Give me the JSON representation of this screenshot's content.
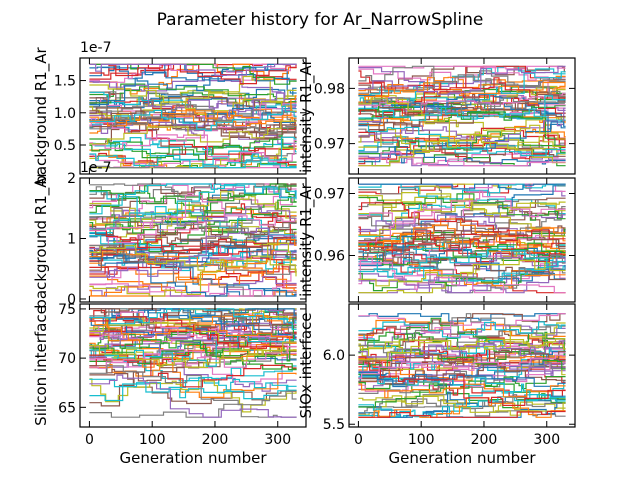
{
  "figure": {
    "title": "Parameter history for Ar_NarrowSpline"
  },
  "palette": [
    "#1f77b4",
    "#ff7f0e",
    "#2ca02c",
    "#d62728",
    "#9467bd",
    "#8c564b",
    "#e377c2",
    "#7f7f7f",
    "#bcbd22",
    "#17becf"
  ],
  "chart_data": [
    {
      "type": "line",
      "title": "",
      "xlabel": "",
      "ylabel": "background R1_Ar",
      "exponent_label": "1e-7",
      "xlim": [
        -15,
        345
      ],
      "ylim": [
        0.05,
        1.85
      ],
      "xticks": [
        0,
        100,
        200,
        300
      ],
      "xtick_labels": [
        "",
        "",
        "",
        ""
      ],
      "yticks": [
        0.5,
        1.0,
        1.5
      ],
      "ytick_labels": [
        "0.5",
        "1.0",
        "1.5"
      ],
      "position": "top-left",
      "n_generations": 330,
      "series_count": 60,
      "value_range": [
        0.15,
        1.75
      ],
      "value_center": 0.95
    },
    {
      "type": "line",
      "title": "",
      "xlabel": "",
      "ylabel": "intensity R1_Ar",
      "exponent_label": "",
      "xlim": [
        -15,
        345
      ],
      "ylim": [
        0.9645,
        0.9855
      ],
      "xticks": [
        0,
        100,
        200,
        300
      ],
      "xtick_labels": [
        "",
        "",
        "",
        ""
      ],
      "yticks": [
        0.97,
        0.98
      ],
      "ytick_labels": [
        "0.97",
        "0.98"
      ],
      "position": "top-right",
      "n_generations": 330,
      "series_count": 60,
      "value_range": [
        0.966,
        0.984
      ],
      "value_center": 0.975
    },
    {
      "type": "line",
      "title": "",
      "xlabel": "",
      "ylabel": "background R1_Ar",
      "exponent_label": "1e-7",
      "xlim": [
        -15,
        345
      ],
      "ylim": [
        -0.05,
        2.0
      ],
      "xticks": [
        0,
        100,
        200,
        300
      ],
      "xtick_labels": [
        "",
        "",
        "",
        ""
      ],
      "yticks": [
        0,
        1,
        2
      ],
      "ytick_labels": [
        "0",
        "1",
        "2"
      ],
      "position": "middle-left",
      "n_generations": 330,
      "series_count": 60,
      "value_range": [
        0.05,
        1.9
      ],
      "value_center": 1.0
    },
    {
      "type": "line",
      "title": "",
      "xlabel": "",
      "ylabel": "intensity R1_Ar",
      "exponent_label": "",
      "xlim": [
        -15,
        345
      ],
      "ylim": [
        0.9525,
        0.9725
      ],
      "xticks": [
        0,
        100,
        200,
        300
      ],
      "xtick_labels": [
        "",
        "",
        "",
        ""
      ],
      "yticks": [
        0.96,
        0.97
      ],
      "ytick_labels": [
        "0.96",
        "0.97"
      ],
      "position": "middle-right",
      "n_generations": 330,
      "series_count": 60,
      "value_range": [
        0.954,
        0.9715
      ],
      "value_center": 0.962
    },
    {
      "type": "line",
      "title": "",
      "xlabel": "Generation number",
      "ylabel": "Silicon interface",
      "exponent_label": "",
      "xlim": [
        -15,
        345
      ],
      "ylim": [
        63,
        75.5
      ],
      "xticks": [
        0,
        100,
        200,
        300
      ],
      "xtick_labels": [
        "0",
        "100",
        "200",
        "300"
      ],
      "yticks": [
        65,
        70,
        75
      ],
      "ytick_labels": [
        "65",
        "70",
        "75"
      ],
      "position": "bottom-left",
      "n_generations": 330,
      "series_count": 60,
      "value_range": [
        64,
        75
      ],
      "value_center": 71.5
    },
    {
      "type": "line",
      "title": "",
      "xlabel": "Generation number",
      "ylabel": "SiOx interface",
      "exponent_label": "",
      "xlim": [
        -15,
        345
      ],
      "ylim": [
        5.48,
        6.37
      ],
      "xticks": [
        0,
        100,
        200,
        300
      ],
      "xtick_labels": [
        "0",
        "100",
        "200",
        "300"
      ],
      "yticks": [
        5.5,
        6.0
      ],
      "ytick_labels": [
        "5.5",
        "6.0"
      ],
      "position": "bottom-right",
      "n_generations": 330,
      "series_count": 60,
      "value_range": [
        5.55,
        6.3
      ],
      "value_center": 5.88
    }
  ]
}
